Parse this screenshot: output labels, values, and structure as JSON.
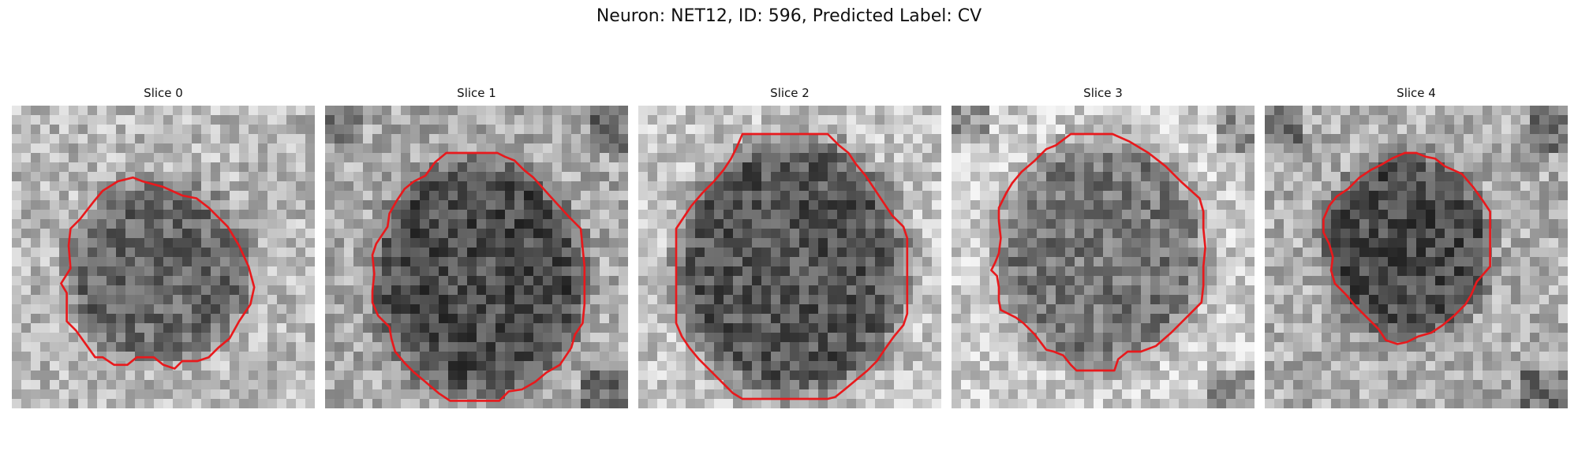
{
  "figure": {
    "title": "Neuron: NET12, ID: 596, Predicted Label: CV"
  },
  "panels": [
    {
      "title": "Slice 0",
      "contour_color": "#e8191c"
    },
    {
      "title": "Slice 1",
      "contour_color": "#e8191c"
    },
    {
      "title": "Slice 2",
      "contour_color": "#e8191c"
    },
    {
      "title": "Slice 3",
      "contour_color": "#e8191c"
    },
    {
      "title": "Slice 4",
      "contour_color": "#e8191c"
    }
  ]
}
